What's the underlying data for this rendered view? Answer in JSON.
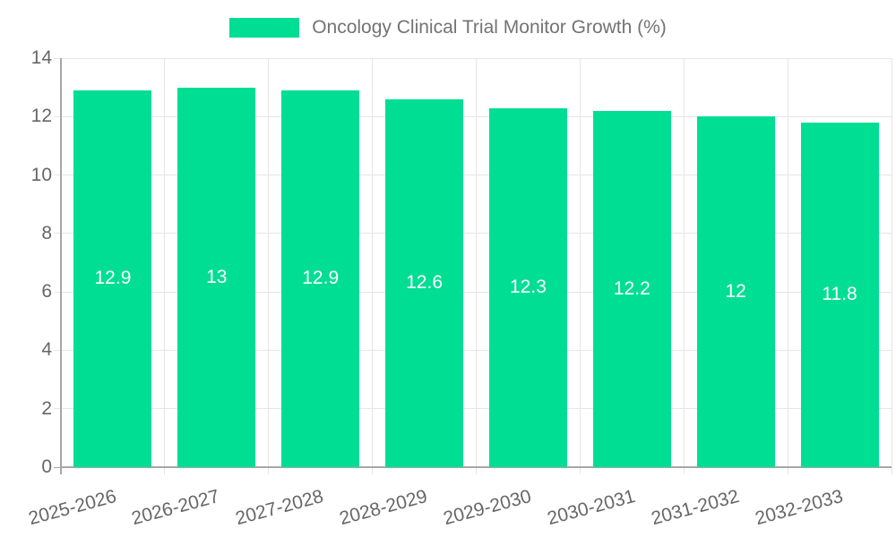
{
  "chart_data": {
    "type": "bar",
    "title": "Oncology Clinical Trial Monitor Growth (%)",
    "categories": [
      "2025-2026",
      "2026-2027",
      "2027-2028",
      "2028-2029",
      "2029-2030",
      "2030-2031",
      "2031-2032",
      "2032-2033"
    ],
    "values": [
      12.9,
      13,
      12.9,
      12.6,
      12.3,
      12.2,
      12,
      11.8
    ],
    "bar_labels": [
      "12.9",
      "13",
      "12.9",
      "12.6",
      "12.3",
      "12.2",
      "12",
      "11.8"
    ],
    "xlabel": "",
    "ylabel": "",
    "ylim": [
      0,
      14
    ],
    "yticks": [
      0,
      2,
      4,
      6,
      8,
      10,
      12,
      14
    ],
    "grid": true,
    "legend_position": "top",
    "x_label_rotation_deg": -15,
    "colors": {
      "bar": "#00DE94",
      "axis": "#a6a6a6",
      "grid": "#e6e6e6",
      "tick_label": "#666666",
      "legend_text": "#737373",
      "value_label": "#ffffff",
      "background": "#ffffff"
    }
  }
}
